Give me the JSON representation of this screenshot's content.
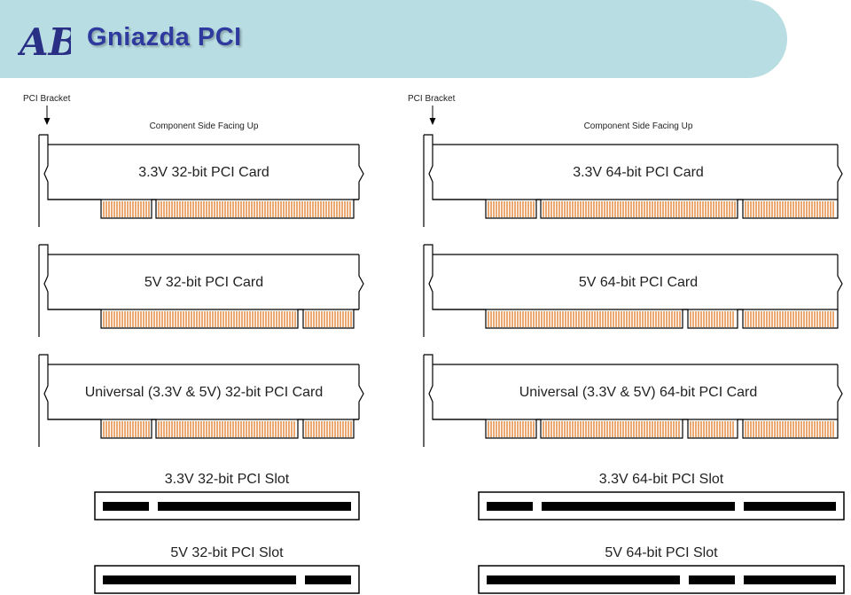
{
  "header": {
    "logo_text": "AB",
    "title": "Gniazda PCI"
  },
  "colors": {
    "header_bg": "#b8dde2",
    "title": "#2f3a9e",
    "contact": "#e07a22",
    "outline": "#000000"
  },
  "columns": [
    {
      "bracket_label": "PCI Bracket",
      "side_label": "Component Side Facing Up",
      "cards": [
        {
          "label": "3.3V 32-bit PCI Card"
        },
        {
          "label": "5V 32-bit PCI Card"
        },
        {
          "label": "Universal (3.3V & 5V) 32-bit PCI Card"
        }
      ],
      "slots": [
        {
          "label": "3.3V 32-bit PCI Slot"
        },
        {
          "label": "5V 32-bit PCI Slot"
        }
      ]
    },
    {
      "bracket_label": "PCI Bracket",
      "side_label": "Component Side Facing Up",
      "cards": [
        {
          "label": "3.3V 64-bit PCI Card"
        },
        {
          "label": "5V 64-bit PCI Card"
        },
        {
          "label": "Universal (3.3V & 5V) 64-bit PCI Card"
        }
      ],
      "slots": [
        {
          "label": "3.3V 64-bit PCI Slot"
        },
        {
          "label": "5V 64-bit PCI Slot"
        }
      ]
    }
  ]
}
